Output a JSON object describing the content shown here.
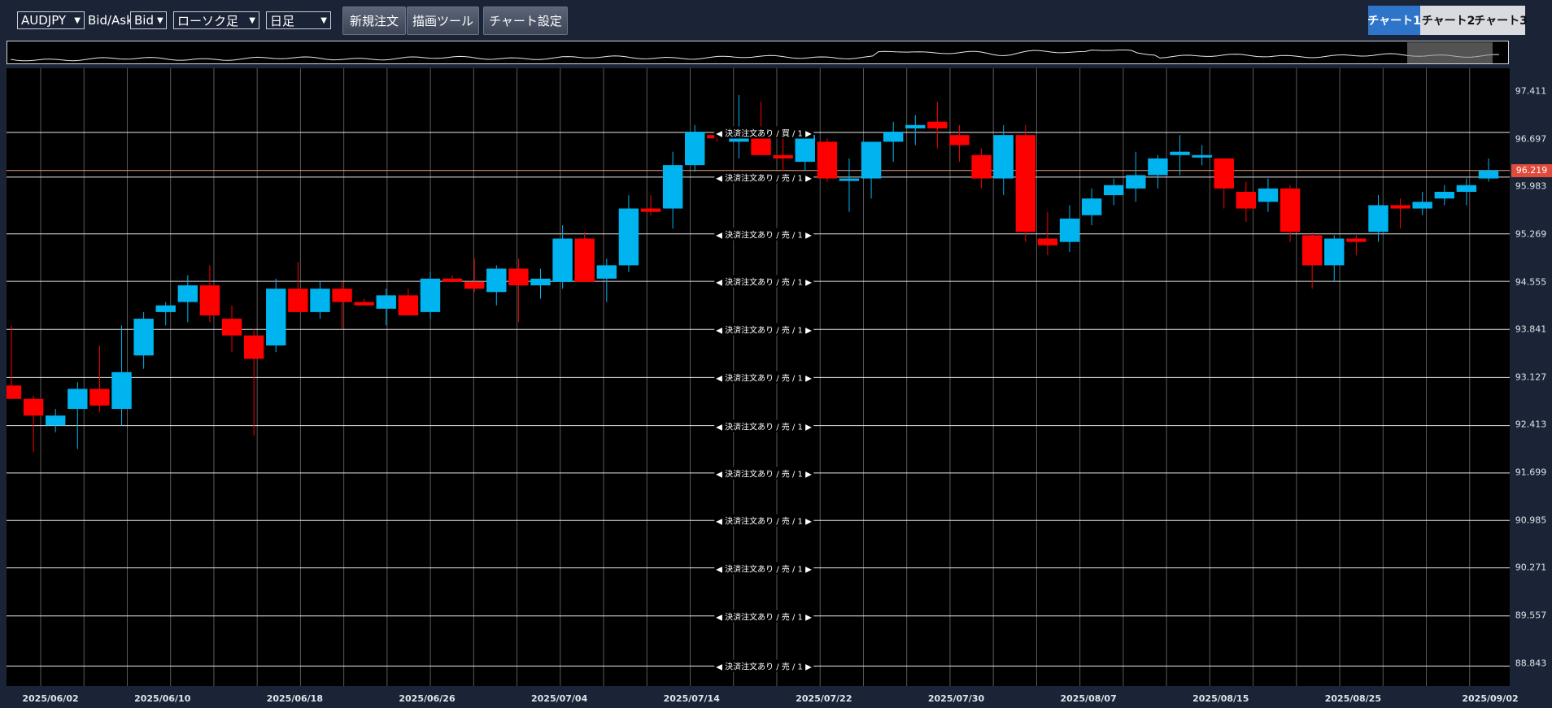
{
  "toolbar": {
    "symbol": "AUDJPY",
    "bidask_label": "Bid/Ask",
    "bidask_value": "Bid",
    "chart_type": "ローソク足",
    "timeframe": "日足",
    "new_order": "新規注文",
    "drawing_tools": "描画ツール",
    "chart_settings": "チャート設定"
  },
  "tabs": [
    "チャート1",
    "チャート2",
    "チャート3"
  ],
  "active_tab": 0,
  "colors": {
    "up": "#00b4f0",
    "down": "#ff0000",
    "price_label": "#e04b3c",
    "current_line": "#e9a27c"
  },
  "order_label_text": "決済注文あり / 売 / 1",
  "order_label_buy": "決済注文あり / 買 / 1",
  "current_price": "96.219",
  "chart_data": {
    "type": "candlestick",
    "symbol": "AUDJPY",
    "timeframe": "日足",
    "ylim": [
      88.5,
      97.75
    ],
    "price_ticks": [
      "97.411",
      "96.697",
      "95.983",
      "95.269",
      "94.555",
      "93.841",
      "93.127",
      "92.413",
      "91.699",
      "90.985",
      "90.271",
      "89.557",
      "88.843"
    ],
    "time_ticks": [
      "2025/06/02",
      "2025/06/10",
      "2025/06/18",
      "2025/06/26",
      "2025/07/04",
      "2025/07/14",
      "2025/07/22",
      "2025/07/30",
      "2025/08/07",
      "2025/08/15",
      "2025/08/25",
      "2025/09/02"
    ],
    "order_lines": [
      96.79,
      96.12,
      95.27,
      94.56,
      93.84,
      93.12,
      92.4,
      91.69,
      90.98,
      90.27,
      89.55,
      88.8
    ],
    "current_price": 96.219,
    "candles": [
      {
        "o": 93.0,
        "h": 93.9,
        "l": 92.8,
        "c": 92.8
      },
      {
        "o": 92.8,
        "h": 92.85,
        "l": 92.0,
        "c": 92.55
      },
      {
        "o": 92.4,
        "h": 92.65,
        "l": 92.3,
        "c": 92.55
      },
      {
        "o": 92.65,
        "h": 93.05,
        "l": 92.05,
        "c": 92.95
      },
      {
        "o": 92.95,
        "h": 93.6,
        "l": 92.6,
        "c": 92.7
      },
      {
        "o": 92.65,
        "h": 93.9,
        "l": 92.4,
        "c": 93.2
      },
      {
        "o": 93.45,
        "h": 94.1,
        "l": 93.25,
        "c": 94.0
      },
      {
        "o": 94.1,
        "h": 94.25,
        "l": 93.9,
        "c": 94.2
      },
      {
        "o": 94.25,
        "h": 94.65,
        "l": 93.95,
        "c": 94.5
      },
      {
        "o": 94.5,
        "h": 94.8,
        "l": 93.95,
        "c": 94.05
      },
      {
        "o": 94.0,
        "h": 94.2,
        "l": 93.5,
        "c": 93.75
      },
      {
        "o": 93.75,
        "h": 93.85,
        "l": 92.25,
        "c": 93.4
      },
      {
        "o": 93.6,
        "h": 94.6,
        "l": 93.5,
        "c": 94.45
      },
      {
        "o": 94.45,
        "h": 94.85,
        "l": 94.1,
        "c": 94.1
      },
      {
        "o": 94.1,
        "h": 94.55,
        "l": 94.0,
        "c": 94.45
      },
      {
        "o": 94.45,
        "h": 94.55,
        "l": 93.85,
        "c": 94.25
      },
      {
        "o": 94.25,
        "h": 94.3,
        "l": 94.2,
        "c": 94.2
      },
      {
        "o": 94.15,
        "h": 94.45,
        "l": 93.9,
        "c": 94.35
      },
      {
        "o": 94.35,
        "h": 94.45,
        "l": 94.05,
        "c": 94.05
      },
      {
        "o": 94.1,
        "h": 94.7,
        "l": 94.0,
        "c": 94.6
      },
      {
        "o": 94.6,
        "h": 94.65,
        "l": 94.55,
        "c": 94.55
      },
      {
        "o": 94.55,
        "h": 94.9,
        "l": 94.4,
        "c": 94.45
      },
      {
        "o": 94.4,
        "h": 94.8,
        "l": 94.2,
        "c": 94.75
      },
      {
        "o": 94.75,
        "h": 94.9,
        "l": 93.95,
        "c": 94.5
      },
      {
        "o": 94.5,
        "h": 94.75,
        "l": 94.3,
        "c": 94.6
      },
      {
        "o": 94.55,
        "h": 95.4,
        "l": 94.45,
        "c": 95.2
      },
      {
        "o": 95.2,
        "h": 95.3,
        "l": 94.55,
        "c": 94.55
      },
      {
        "o": 94.6,
        "h": 94.9,
        "l": 94.25,
        "c": 94.8
      },
      {
        "o": 94.8,
        "h": 95.85,
        "l": 94.7,
        "c": 95.65
      },
      {
        "o": 95.65,
        "h": 95.85,
        "l": 95.55,
        "c": 95.6
      },
      {
        "o": 95.65,
        "h": 96.5,
        "l": 95.35,
        "c": 96.3
      },
      {
        "o": 96.3,
        "h": 96.9,
        "l": 96.2,
        "c": 96.8
      },
      {
        "o": 96.75,
        "h": 96.8,
        "l": 96.65,
        "c": 96.7
      },
      {
        "o": 96.65,
        "h": 97.35,
        "l": 96.4,
        "c": 96.85
      },
      {
        "o": 96.85,
        "h": 97.25,
        "l": 96.45,
        "c": 96.45
      },
      {
        "o": 96.45,
        "h": 96.7,
        "l": 96.05,
        "c": 96.4
      },
      {
        "o": 96.35,
        "h": 96.85,
        "l": 96.2,
        "c": 96.75
      },
      {
        "o": 96.65,
        "h": 96.7,
        "l": 96.05,
        "c": 96.1
      },
      {
        "o": 96.1,
        "h": 96.4,
        "l": 95.6,
        "c": 96.1
      },
      {
        "o": 96.1,
        "h": 96.65,
        "l": 95.8,
        "c": 96.65
      },
      {
        "o": 96.65,
        "h": 96.95,
        "l": 96.35,
        "c": 96.8
      },
      {
        "o": 96.85,
        "h": 97.05,
        "l": 96.6,
        "c": 96.9
      },
      {
        "o": 96.95,
        "h": 97.25,
        "l": 96.55,
        "c": 96.85
      },
      {
        "o": 96.75,
        "h": 96.9,
        "l": 96.35,
        "c": 96.6
      },
      {
        "o": 96.45,
        "h": 96.55,
        "l": 95.95,
        "c": 96.1
      },
      {
        "o": 96.1,
        "h": 96.9,
        "l": 95.85,
        "c": 96.75
      },
      {
        "o": 96.75,
        "h": 96.9,
        "l": 95.15,
        "c": 95.3
      },
      {
        "o": 95.2,
        "h": 95.6,
        "l": 94.95,
        "c": 95.1
      },
      {
        "o": 95.15,
        "h": 95.7,
        "l": 95.0,
        "c": 95.5
      },
      {
        "o": 95.55,
        "h": 95.95,
        "l": 95.4,
        "c": 95.8
      },
      {
        "o": 95.85,
        "h": 96.1,
        "l": 95.7,
        "c": 96.0
      },
      {
        "o": 95.95,
        "h": 96.5,
        "l": 95.75,
        "c": 96.15
      },
      {
        "o": 96.15,
        "h": 96.45,
        "l": 95.95,
        "c": 96.4
      },
      {
        "o": 96.45,
        "h": 96.75,
        "l": 96.15,
        "c": 96.5
      },
      {
        "o": 96.45,
        "h": 96.6,
        "l": 96.3,
        "c": 96.45
      },
      {
        "o": 96.4,
        "h": 96.4,
        "l": 95.65,
        "c": 95.95
      },
      {
        "o": 95.9,
        "h": 96.05,
        "l": 95.45,
        "c": 95.65
      },
      {
        "o": 95.75,
        "h": 96.1,
        "l": 95.6,
        "c": 95.95
      },
      {
        "o": 95.95,
        "h": 96.0,
        "l": 95.15,
        "c": 95.3
      },
      {
        "o": 95.25,
        "h": 95.3,
        "l": 94.45,
        "c": 94.8
      },
      {
        "o": 94.8,
        "h": 95.25,
        "l": 94.55,
        "c": 95.2
      },
      {
        "o": 95.2,
        "h": 95.25,
        "l": 94.95,
        "c": 95.15
      },
      {
        "o": 95.3,
        "h": 95.85,
        "l": 95.15,
        "c": 95.7
      },
      {
        "o": 95.7,
        "h": 95.8,
        "l": 95.35,
        "c": 95.65
      },
      {
        "o": 95.65,
        "h": 95.9,
        "l": 95.55,
        "c": 95.75
      },
      {
        "o": 95.8,
        "h": 96.0,
        "l": 95.7,
        "c": 95.9
      },
      {
        "o": 95.9,
        "h": 96.1,
        "l": 95.7,
        "c": 96.0
      },
      {
        "o": 96.1,
        "h": 96.4,
        "l": 96.05,
        "c": 96.22
      }
    ]
  }
}
